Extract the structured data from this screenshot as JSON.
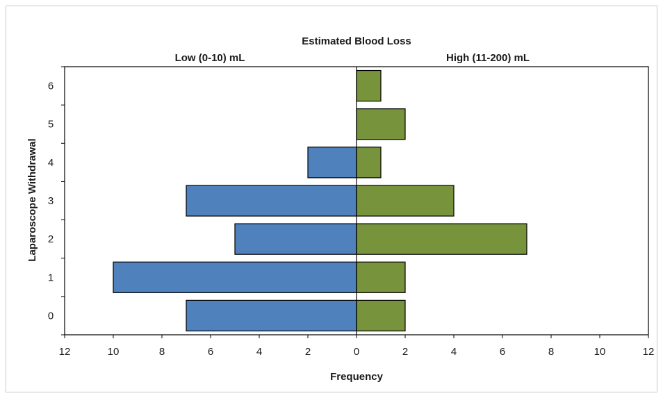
{
  "chart_data": {
    "type": "bar",
    "orientation": "horizontal",
    "layout": "population-pyramid",
    "title": "Estimated Blood Loss",
    "xlabel": "Frequency",
    "ylabel": "Laparoscope Withdrawal",
    "categories": [
      "0",
      "1",
      "2",
      "3",
      "4",
      "5",
      "6"
    ],
    "xlim": [
      -12,
      12
    ],
    "x_ticks": [
      "12",
      "10",
      "8",
      "6",
      "4",
      "2",
      "0",
      "2",
      "4",
      "6",
      "8",
      "10",
      "12"
    ],
    "grid": false,
    "series": [
      {
        "name": "Low (0-10) mL",
        "side": "left",
        "color": "#4f81bd",
        "values": [
          7,
          10,
          5,
          7,
          2,
          0,
          0
        ]
      },
      {
        "name": "High (11-200) mL",
        "side": "right",
        "color": "#77933c",
        "values": [
          2,
          2,
          7,
          4,
          1,
          2,
          1
        ]
      }
    ]
  }
}
